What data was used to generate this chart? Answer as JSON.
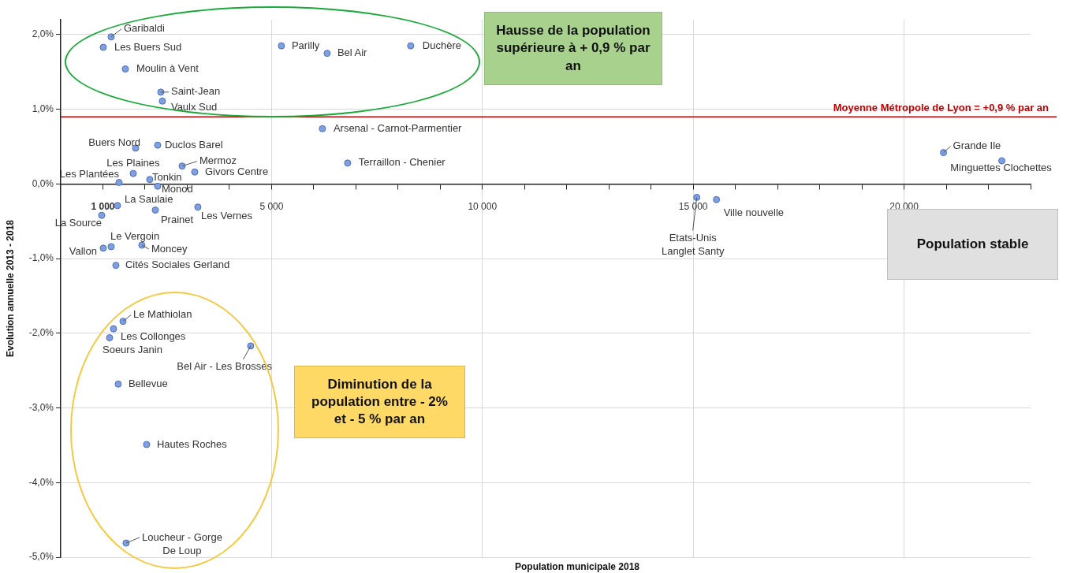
{
  "chart_data": {
    "type": "scatter",
    "xlabel": "Population municipale 2018",
    "ylabel": "Evolution annuelle 2013 - 2018",
    "x": [
      1196,
      1009,
      1533,
      2374,
      2411,
      5234,
      6318,
      8299,
      6206,
      1776,
      2299,
      2879,
      1720,
      3178,
      2112,
      1383,
      2299,
      6804,
      1346,
      2243,
      3252,
      972,
      1196,
      1009,
      1925,
      1308,
      1477,
      1252,
      1159,
      4505,
      1364,
      2037,
      1551,
      15084,
      15551,
      20935,
      22318
    ],
    "values": [
      1.97,
      1.83,
      1.54,
      1.23,
      1.11,
      1.85,
      1.75,
      1.85,
      0.74,
      0.48,
      0.52,
      0.24,
      0.14,
      0.16,
      0.06,
      0.02,
      -0.03,
      0.28,
      -0.29,
      -0.35,
      -0.31,
      -0.42,
      -0.84,
      -0.86,
      -0.82,
      -1.09,
      -1.84,
      -1.94,
      -2.06,
      -2.17,
      -2.68,
      -3.49,
      -4.81,
      -0.18,
      -0.21,
      0.42,
      0.31
    ],
    "color": "#7f9fdf",
    "marker": "circle",
    "xlim": [
      0,
      23000
    ],
    "ylim": [
      -5,
      2.2
    ],
    "xticks": [
      {
        "value": 1000,
        "label": "1 000"
      },
      {
        "value": 2000,
        "label": null
      },
      {
        "value": 3000,
        "label": null
      },
      {
        "value": 4000,
        "label": null
      },
      {
        "value": 5000,
        "label": "5 000"
      },
      {
        "value": 6000,
        "label": null
      },
      {
        "value": 7000,
        "label": null
      },
      {
        "value": 8000,
        "label": null
      },
      {
        "value": 9000,
        "label": null
      },
      {
        "value": 10000,
        "label": "10 000"
      },
      {
        "value": 11000,
        "label": null
      },
      {
        "value": 12000,
        "label": null
      },
      {
        "value": 13000,
        "label": null
      },
      {
        "value": 14000,
        "label": null
      },
      {
        "value": 15000,
        "label": "15 000"
      },
      {
        "value": 16000,
        "label": null
      },
      {
        "value": 17000,
        "label": null
      },
      {
        "value": 18000,
        "label": null
      },
      {
        "value": 19000,
        "label": null
      },
      {
        "value": 20000,
        "label": "20 000"
      },
      {
        "value": 21000,
        "label": null
      },
      {
        "value": 22000,
        "label": null
      },
      {
        "value": 23000,
        "label": null
      }
    ],
    "yticks": [
      {
        "value": -5,
        "label": "-5,0%"
      },
      {
        "value": -4,
        "label": "-4,0%"
      },
      {
        "value": -3,
        "label": "-3,0%"
      },
      {
        "value": -2,
        "label": "-2,0%"
      },
      {
        "value": -1,
        "label": "-1,0%"
      },
      {
        "value": 0,
        "label": "0,0%"
      },
      {
        "value": 1,
        "label": "1,0%"
      },
      {
        "value": 2,
        "label": "2,0%"
      }
    ],
    "grid": true,
    "legend": false,
    "ref_lines": [
      {
        "axis": "y",
        "value": 0.9,
        "label": "Moyenne Métropole de Lyon = +0,9 % par an",
        "color": "#c00000"
      }
    ],
    "annotations": [
      {
        "text": "Garibaldi",
        "x": 1196,
        "y": 1.97
      },
      {
        "text": "Les Buers Sud",
        "x": 1009,
        "y": 1.83
      },
      {
        "text": "Moulin à Vent",
        "x": 1533,
        "y": 1.54
      },
      {
        "text": "Saint-Jean",
        "x": 2374,
        "y": 1.23
      },
      {
        "text": "Vaulx Sud",
        "x": 2411,
        "y": 1.11
      },
      {
        "text": "Parilly",
        "x": 5234,
        "y": 1.85
      },
      {
        "text": "Bel Air",
        "x": 6318,
        "y": 1.75
      },
      {
        "text": "Duchère",
        "x": 8299,
        "y": 1.85
      },
      {
        "text": "Arsenal - Carnot-Parmentier",
        "x": 6206,
        "y": 0.74
      },
      {
        "text": "Buers Nord",
        "x": 1776,
        "y": 0.48
      },
      {
        "text": "Duclos Barel",
        "x": 2299,
        "y": 0.52
      },
      {
        "text": "Mermoz",
        "x": 2879,
        "y": 0.24
      },
      {
        "text": "Les Plaines",
        "x": 1720,
        "y": 0.14
      },
      {
        "text": "Givors Centre",
        "x": 3178,
        "y": 0.16
      },
      {
        "text": "Tonkin",
        "x": 2112,
        "y": 0.06
      },
      {
        "text": "Les Plantées",
        "x": 1383,
        "y": 0.02
      },
      {
        "text": "Monod",
        "x": 2299,
        "y": -0.03
      },
      {
        "text": "Terraillon - Chenier",
        "x": 6804,
        "y": 0.28
      },
      {
        "text": "La Saulaie",
        "x": 1346,
        "y": -0.29
      },
      {
        "text": "Prainet",
        "x": 2243,
        "y": -0.35
      },
      {
        "text": "Les Vernes",
        "x": 3252,
        "y": -0.31
      },
      {
        "text": "La Source",
        "x": 972,
        "y": -0.42
      },
      {
        "text": "Le Vergoin",
        "x": 1196,
        "y": -0.84
      },
      {
        "text": "Vallon",
        "x": 1009,
        "y": -0.86
      },
      {
        "text": "Moncey",
        "x": 1925,
        "y": -0.82
      },
      {
        "text": "Cités Sociales Gerland",
        "x": 1308,
        "y": -1.09
      },
      {
        "text": "Le Mathiolan",
        "x": 1477,
        "y": -1.84
      },
      {
        "text": "Les Collonges",
        "x": 1252,
        "y": -1.94
      },
      {
        "text": "Soeurs Janin",
        "x": 1159,
        "y": -2.06
      },
      {
        "text": "Bel Air - Les Brosses",
        "x": 4505,
        "y": -2.17
      },
      {
        "text": "Bellevue",
        "x": 1364,
        "y": -2.68
      },
      {
        "text": "Hautes Roches",
        "x": 2037,
        "y": -3.49
      },
      {
        "text": "Loucheur - Gorge De Loup",
        "x": 1551,
        "y": -4.81
      },
      {
        "text": "Etats-Unis Langlet Santy",
        "x": 15084,
        "y": -0.18
      },
      {
        "text": "Ville nouvelle",
        "x": 15551,
        "y": -0.21
      },
      {
        "text": "Grande Ile",
        "x": 20935,
        "y": 0.42
      },
      {
        "text": "Minguettes Clochettes",
        "x": 22318,
        "y": 0.31
      },
      "Hausse de la population supérieure à + 0,9 % par an",
      "Population stable",
      "Diminution de la population entre - 2% et - 5 % par an"
    ]
  }
}
